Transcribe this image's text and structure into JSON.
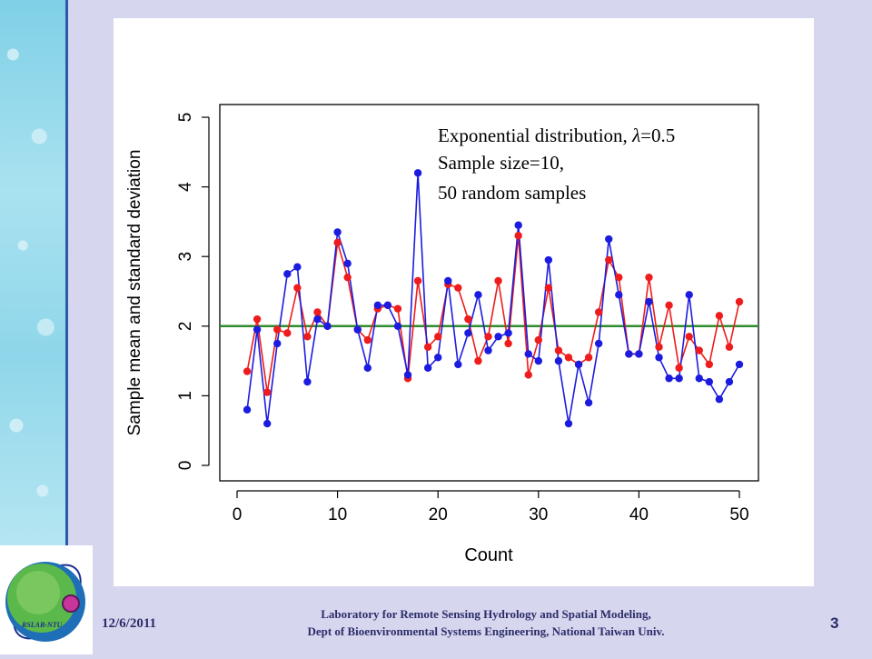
{
  "footer": {
    "date": "12/6/2011",
    "lab_line1": "Laboratory for Remote Sensing Hydrology and Spatial Modeling,",
    "lab_line2": "Dept of Bioenvironmental Systems Engineering,  National Taiwan Univ.",
    "page_number": "3",
    "logo_text": "RSLAB-NTU"
  },
  "chart_data": {
    "type": "line",
    "xlabel": "Count",
    "ylabel": "Sample mean and standard deviation",
    "xlim": [
      0,
      51
    ],
    "ylim": [
      0,
      5
    ],
    "xticks": [
      0,
      10,
      20,
      30,
      40,
      50
    ],
    "yticks": [
      0,
      1,
      2,
      3,
      4,
      5
    ],
    "annotation": {
      "line1_prefix": "Exponential distribution, ",
      "lambda_symbol": "λ",
      "line1_suffix": "=0.5",
      "line2": "Sample size=10,",
      "line3": "50 random samples"
    },
    "x": [
      1,
      2,
      3,
      4,
      5,
      6,
      7,
      8,
      9,
      10,
      11,
      12,
      13,
      14,
      15,
      16,
      17,
      18,
      19,
      20,
      21,
      22,
      23,
      24,
      25,
      26,
      27,
      28,
      29,
      30,
      31,
      32,
      33,
      34,
      35,
      36,
      37,
      38,
      39,
      40,
      41,
      42,
      43,
      44,
      45,
      46,
      47,
      48,
      49,
      50
    ],
    "series": [
      {
        "color": "#ee1c1c",
        "values": [
          1.35,
          2.1,
          1.05,
          1.95,
          1.9,
          2.55,
          1.85,
          2.2,
          2.0,
          3.2,
          2.7,
          1.95,
          1.8,
          2.25,
          2.3,
          2.25,
          1.25,
          2.65,
          1.7,
          1.85,
          2.6,
          2.55,
          2.1,
          1.5,
          1.85,
          2.65,
          1.75,
          3.3,
          1.3,
          1.8,
          2.55,
          1.65,
          1.55,
          1.45,
          1.55,
          2.2,
          2.95,
          2.7,
          1.6,
          1.6,
          2.7,
          1.7,
          2.3,
          1.4,
          1.85,
          1.65,
          1.45,
          2.15,
          1.7,
          2.35
        ]
      },
      {
        "color": "#1c1ce0",
        "values": [
          0.8,
          1.95,
          0.6,
          1.75,
          2.75,
          2.85,
          1.2,
          2.1,
          2.0,
          3.35,
          2.9,
          1.95,
          1.4,
          2.3,
          2.3,
          2.0,
          1.3,
          4.2,
          1.4,
          1.55,
          2.65,
          1.45,
          1.9,
          2.45,
          1.65,
          1.85,
          1.9,
          3.45,
          1.6,
          1.5,
          2.95,
          1.5,
          0.6,
          1.45,
          0.9,
          1.75,
          3.25,
          2.45,
          1.6,
          1.6,
          2.35,
          1.55,
          1.25,
          1.25,
          2.45,
          1.25,
          1.2,
          0.95,
          1.2,
          1.45
        ]
      }
    ],
    "reference_line": {
      "y": 2.0,
      "color": "#2e8b2e"
    }
  }
}
